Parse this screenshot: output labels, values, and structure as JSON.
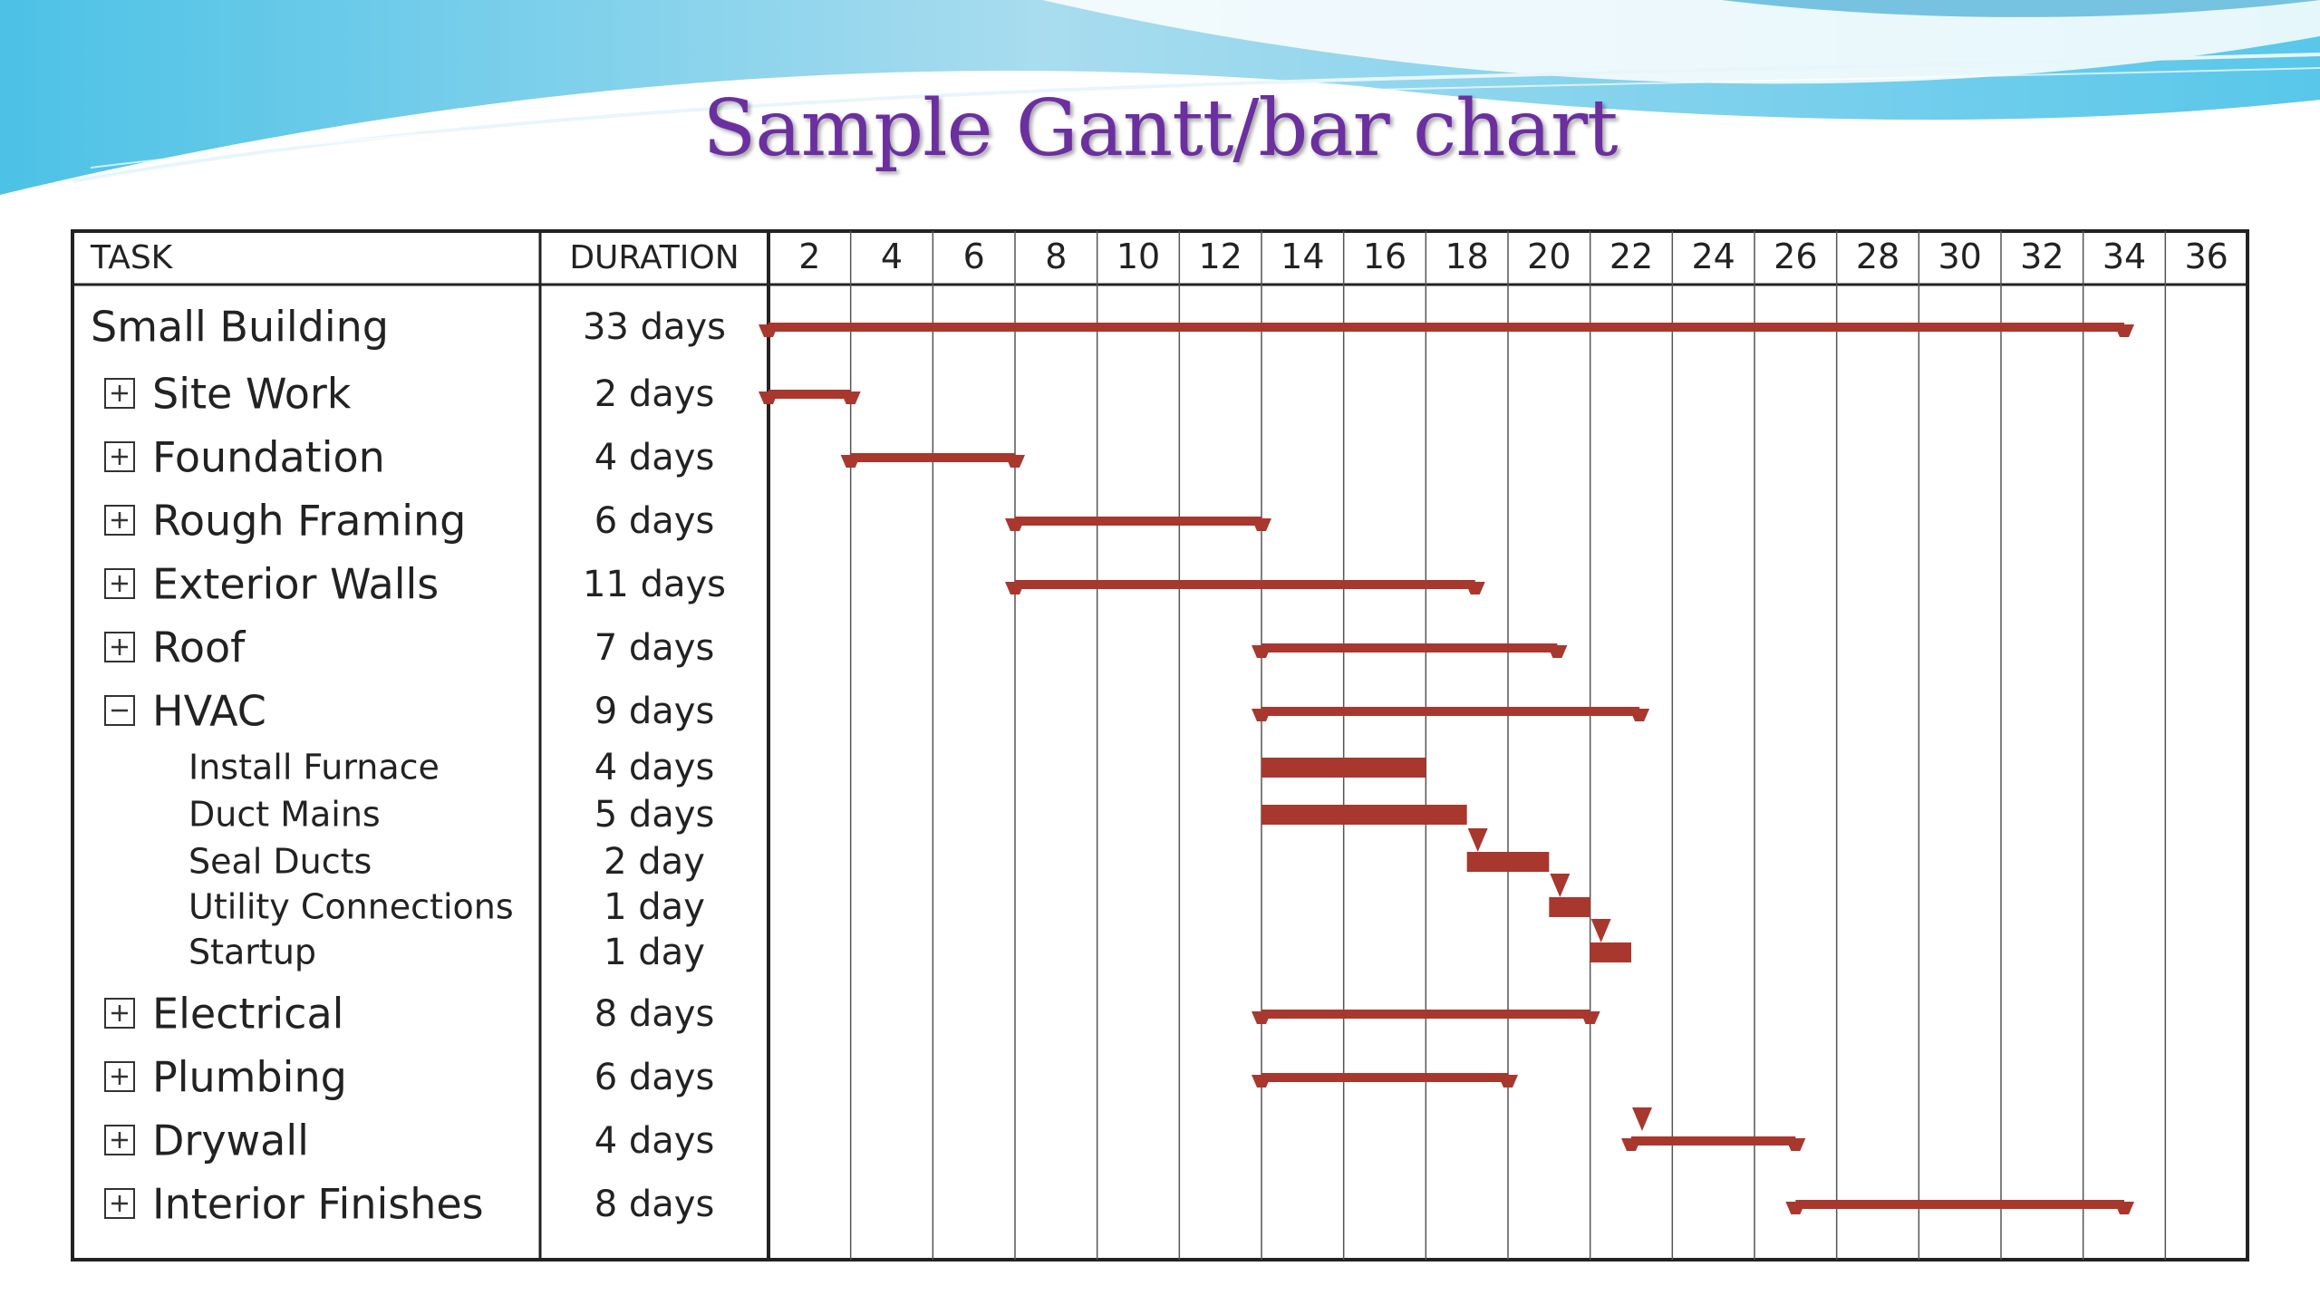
{
  "title": "Sample Gantt/bar chart",
  "colors": {
    "bar": "#a8372e",
    "title": "#6b2fa0"
  },
  "chart_data": {
    "type": "bar",
    "columns": {
      "task": "TASK",
      "duration": "DURATION"
    },
    "ticks": [
      "2",
      "4",
      "6",
      "8",
      "10",
      "12",
      "14",
      "16",
      "18",
      "20",
      "22",
      "24",
      "26",
      "28",
      "30",
      "32",
      "34",
      "36"
    ],
    "xlim": [
      1,
      37
    ],
    "rows": [
      {
        "task": "Small Building",
        "duration": "33 days",
        "level": 0,
        "expander": "none",
        "kind": "summary",
        "start": 1,
        "end": 34
      },
      {
        "task": "Site Work",
        "duration": "2 days",
        "level": 1,
        "expander": "expand",
        "kind": "summary",
        "start": 1,
        "end": 3
      },
      {
        "task": "Foundation",
        "duration": "4 days",
        "level": 1,
        "expander": "expand",
        "kind": "summary",
        "start": 3,
        "end": 7
      },
      {
        "task": "Rough Framing",
        "duration": "6 days",
        "level": 1,
        "expander": "expand",
        "kind": "summary",
        "start": 7,
        "end": 13
      },
      {
        "task": "Exterior Walls",
        "duration": "11 days",
        "level": 1,
        "expander": "expand",
        "kind": "summary",
        "start": 7,
        "end": 18.2
      },
      {
        "task": "Roof",
        "duration": "7 days",
        "level": 1,
        "expander": "expand",
        "kind": "summary",
        "start": 13,
        "end": 20.2
      },
      {
        "task": "HVAC",
        "duration": "9 days",
        "level": 1,
        "expander": "collapse",
        "kind": "summary",
        "start": 13,
        "end": 22.2
      },
      {
        "task": "Install Furnace",
        "duration": "4 days",
        "level": 2,
        "expander": "none",
        "kind": "task",
        "start": 13,
        "end": 17
      },
      {
        "task": "Duct Mains",
        "duration": "5 days",
        "level": 2,
        "expander": "none",
        "kind": "task",
        "start": 13,
        "end": 18
      },
      {
        "task": "Seal Ducts",
        "duration": "2 day",
        "level": 2,
        "expander": "none",
        "kind": "task",
        "start": 18,
        "end": 20,
        "dep": true
      },
      {
        "task": "Utility Connections",
        "duration": "1 day",
        "level": 2,
        "expander": "none",
        "kind": "task",
        "start": 20,
        "end": 21,
        "dep": true
      },
      {
        "task": "Startup",
        "duration": "1 day",
        "level": 2,
        "expander": "none",
        "kind": "task",
        "start": 21,
        "end": 22,
        "dep": true
      },
      {
        "task": "Electrical",
        "duration": "8 days",
        "level": 1,
        "expander": "expand",
        "kind": "summary",
        "start": 13,
        "end": 21
      },
      {
        "task": "Plumbing",
        "duration": "6 days",
        "level": 1,
        "expander": "expand",
        "kind": "summary",
        "start": 13,
        "end": 19
      },
      {
        "task": "Drywall",
        "duration": "4 days",
        "level": 1,
        "expander": "expand",
        "kind": "summary",
        "start": 22,
        "end": 26,
        "dep": true
      },
      {
        "task": "Interior Finishes",
        "duration": "8 days",
        "level": 1,
        "expander": "expand",
        "kind": "summary",
        "start": 26,
        "end": 34
      }
    ]
  }
}
